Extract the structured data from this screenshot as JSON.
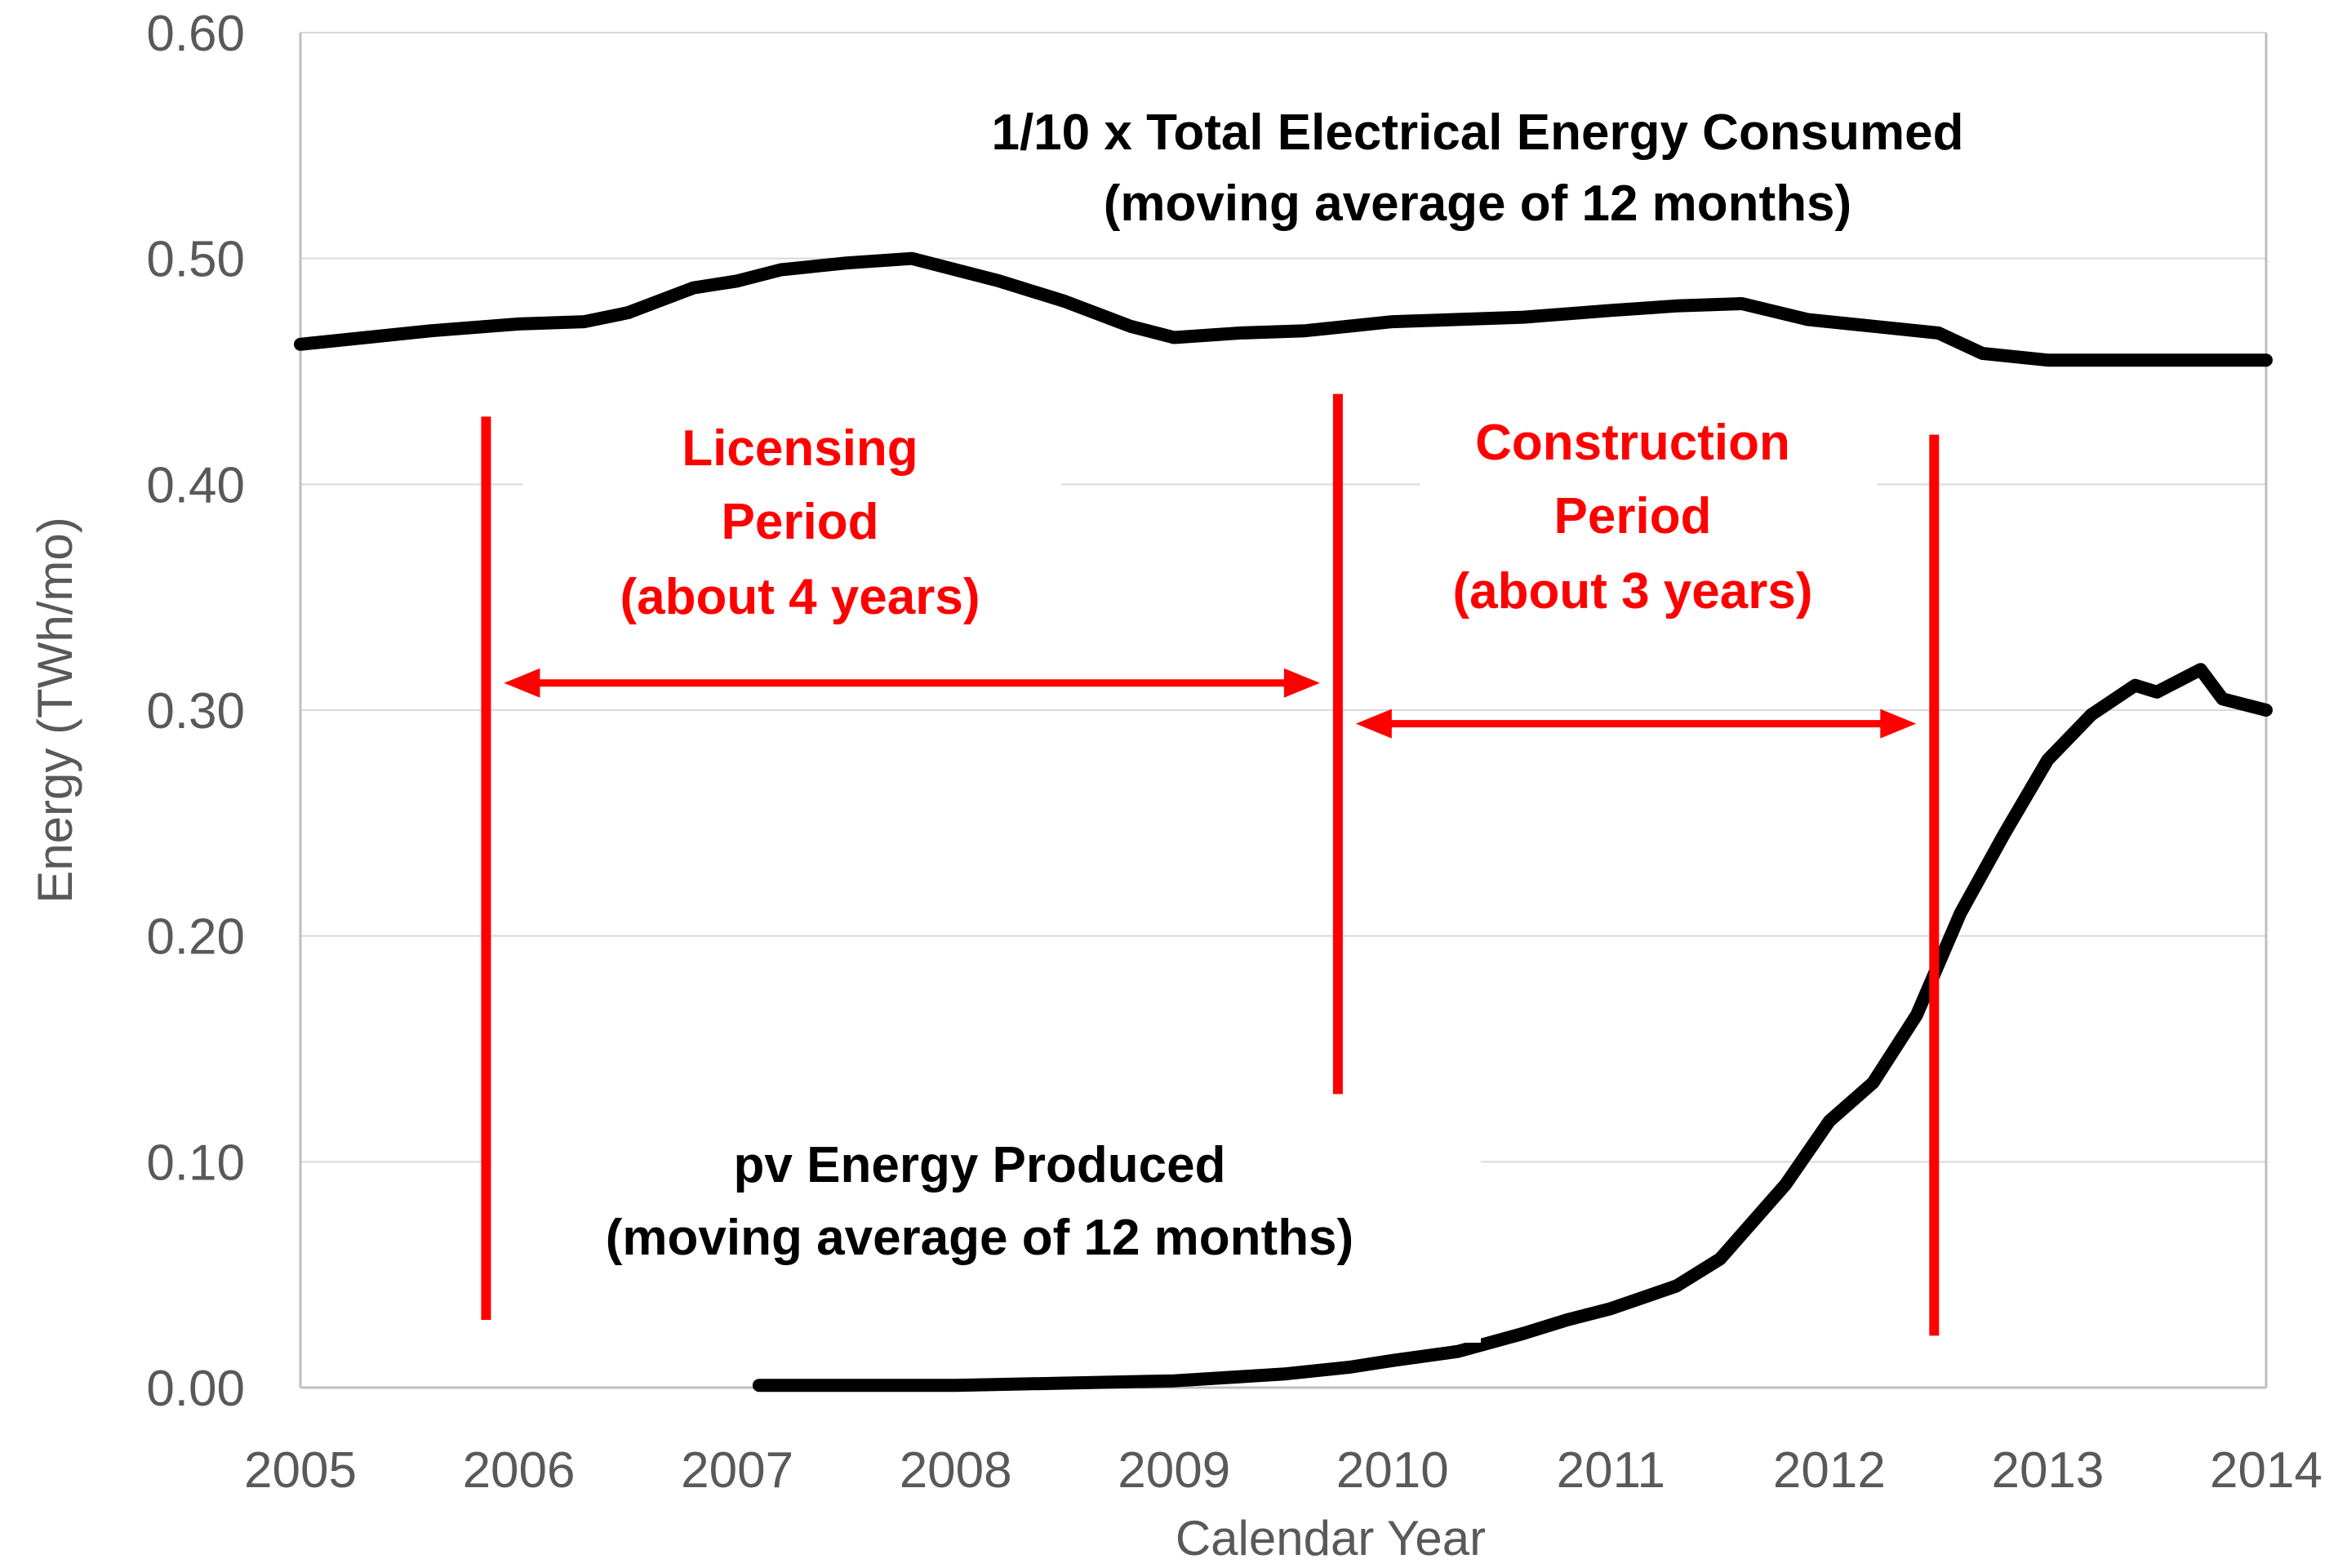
{
  "chart_data": {
    "type": "line",
    "title": "",
    "xlabel": "Calendar Year",
    "ylabel": "Energy (TWh/mo)",
    "xlim": [
      2005,
      2014
    ],
    "ylim": [
      0,
      0.6
    ],
    "x_ticks": [
      "2005",
      "2006",
      "2007",
      "2008",
      "2009",
      "2010",
      "2011",
      "2012",
      "2013",
      "2014"
    ],
    "y_ticks": [
      "0.00",
      "0.10",
      "0.20",
      "0.30",
      "0.40",
      "0.50",
      "0.60"
    ],
    "grid": "horizontal",
    "series": [
      {
        "name": "1/10 x Total Electrical Energy Consumed (moving average of 12 months)",
        "color": "#000000",
        "x": [
          2005.0,
          2005.3,
          2005.6,
          2006.0,
          2006.3,
          2006.5,
          2006.8,
          2007.0,
          2007.2,
          2007.5,
          2007.8,
          2008.0,
          2008.2,
          2008.5,
          2008.8,
          2009.0,
          2009.3,
          2009.6,
          2010.0,
          2010.3,
          2010.6,
          2011.0,
          2011.3,
          2011.6,
          2011.9,
          2012.2,
          2012.5,
          2012.7,
          2013.0,
          2013.3,
          2013.6,
          2014.0
        ],
        "values": [
          0.462,
          0.465,
          0.468,
          0.471,
          0.472,
          0.476,
          0.487,
          0.49,
          0.495,
          0.498,
          0.5,
          0.495,
          0.49,
          0.481,
          0.47,
          0.465,
          0.467,
          0.468,
          0.472,
          0.473,
          0.474,
          0.477,
          0.479,
          0.48,
          0.473,
          0.47,
          0.467,
          0.458,
          0.455,
          0.455,
          0.455,
          0.455
        ]
      },
      {
        "name": "pv Energy Produced (moving average of 12 months)",
        "color": "#000000",
        "x": [
          2007.1,
          2007.5,
          2008.0,
          2008.5,
          2009.0,
          2009.5,
          2009.8,
          2010.0,
          2010.3,
          2010.6,
          2010.8,
          2011.0,
          2011.3,
          2011.5,
          2011.8,
          2012.0,
          2012.2,
          2012.4,
          2012.6,
          2012.8,
          2013.0,
          2013.2,
          2013.4,
          2013.5,
          2013.7,
          2013.8,
          2014.0
        ],
        "values": [
          0.001,
          0.001,
          0.001,
          0.002,
          0.003,
          0.006,
          0.009,
          0.012,
          0.016,
          0.024,
          0.03,
          0.035,
          0.045,
          0.057,
          0.09,
          0.118,
          0.135,
          0.165,
          0.21,
          0.245,
          0.278,
          0.298,
          0.311,
          0.308,
          0.318,
          0.305,
          0.3
        ]
      }
    ],
    "markers": [
      {
        "x": 2005.85,
        "y_range": [
          0.03,
          0.43
        ],
        "color": "#ff0000"
      },
      {
        "x": 2009.75,
        "y_range": [
          0.13,
          0.44
        ],
        "color": "#ff0000"
      },
      {
        "x": 2012.48,
        "y_range": [
          0.023,
          0.422
        ],
        "color": "#ff0000"
      }
    ],
    "spans": [
      {
        "from": 2005.85,
        "to": 2009.75,
        "y": 0.312,
        "color": "#ff0000"
      },
      {
        "from": 2009.75,
        "to": 2012.48,
        "y": 0.294,
        "color": "#ff0000"
      }
    ],
    "annotations": {
      "consumption": [
        "1/10 x Total Electrical Energy Consumed",
        "(moving average of 12 months)"
      ],
      "pv": [
        "pv Energy Produced",
        "(moving average of 12 months)"
      ],
      "licensing": [
        "Licensing",
        "Period",
        "(about 4 years)"
      ],
      "construction": [
        "Construction",
        "Period",
        "(about 3 years)"
      ]
    }
  }
}
